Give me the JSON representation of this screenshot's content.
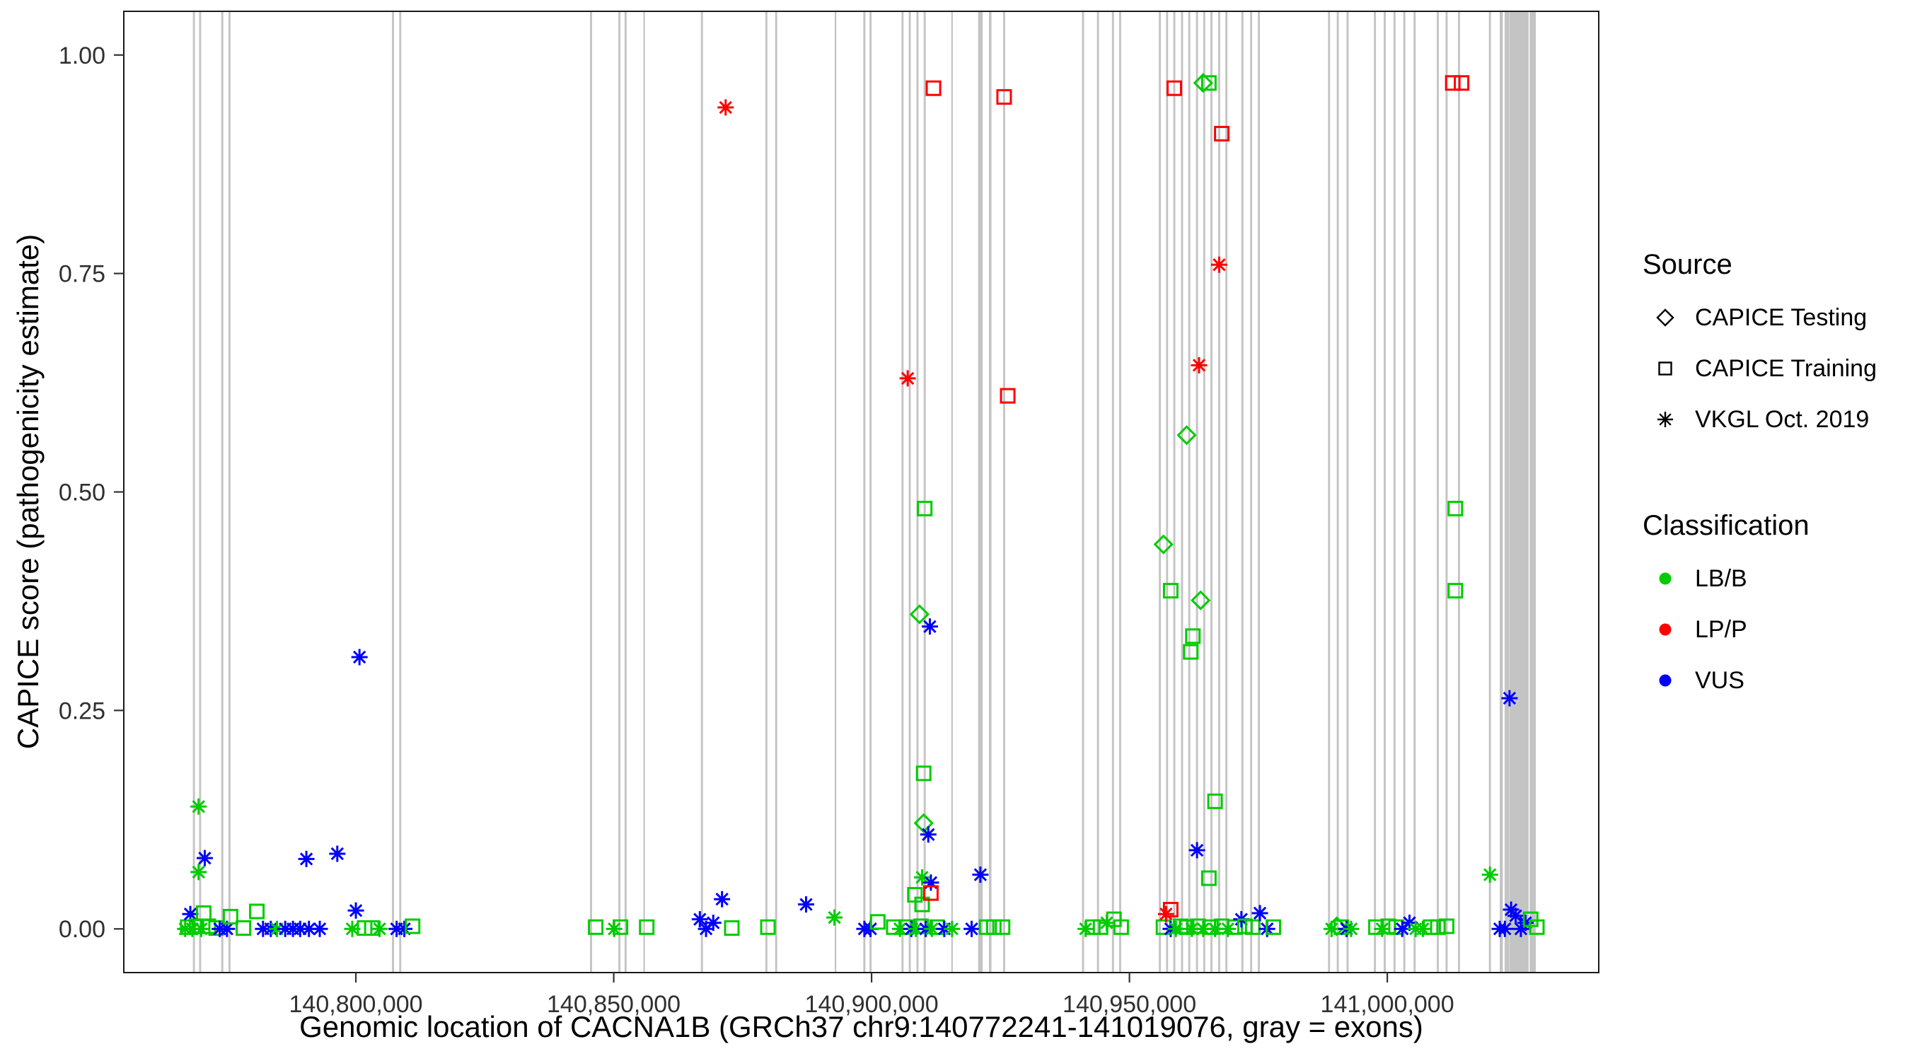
{
  "figure": {
    "background": "#FFFFFF",
    "panel_border_color": "#1a1a1a",
    "tick_color": "#333333",
    "tick_label_color": "#303030"
  },
  "chart_data": {
    "type": "scatter",
    "title": "",
    "xlabel": "Genomic location of CACNA1B (GRCh37 chr9:140772241-141019076, gray = exons)",
    "ylabel": "CAPICE score (pathogenicity estimate)",
    "xlim": [
      140755000,
      141041000
    ],
    "ylim": [
      -0.05,
      1.05
    ],
    "grid": "off",
    "exon_color": "#C4C4C4",
    "x_ticks": [
      {
        "value": 140800000,
        "label": "140,800,000"
      },
      {
        "value": 140850000,
        "label": "140,850,000"
      },
      {
        "value": 140900000,
        "label": "140,900,000"
      },
      {
        "value": 140950000,
        "label": "140,950,000"
      },
      {
        "value": 141000000,
        "label": "141,000,000"
      }
    ],
    "y_ticks": [
      {
        "value": 0.0,
        "label": "0.00"
      },
      {
        "value": 0.25,
        "label": "0.25"
      },
      {
        "value": 0.5,
        "label": "0.50"
      },
      {
        "value": 0.75,
        "label": "0.75"
      },
      {
        "value": 1.0,
        "label": "1.00"
      }
    ],
    "legend": {
      "position": "right",
      "source": {
        "title": "Source",
        "items": [
          {
            "label": "CAPICE Testing",
            "shape": "diamond"
          },
          {
            "label": "CAPICE Training",
            "shape": "square"
          },
          {
            "label": "VKGL Oct. 2019",
            "shape": "asterisk"
          }
        ]
      },
      "classification": {
        "title": "Classification",
        "items": [
          {
            "label": "LB/B",
            "color": "#00CC00"
          },
          {
            "label": "LP/P",
            "color": "#FF0000"
          },
          {
            "label": "VUS",
            "color": "#0000FF"
          }
        ]
      }
    },
    "shape_map": {
      "T": "diamond",
      "R": "square",
      "V": "asterisk"
    },
    "source_names": {
      "T": "CAPICE Testing",
      "R": "CAPICE Training",
      "V": "VKGL Oct. 2019"
    },
    "class_colors": {
      "B": "#00CC00",
      "P": "#FF0000",
      "U": "#0000FF"
    },
    "class_names": {
      "B": "LB/B",
      "P": "LP/P",
      "U": "VUS"
    },
    "exons_format": [
      "genomic_center_bp",
      "width_bp"
    ],
    "exons": [
      [
        140768600,
        400
      ],
      [
        140769800,
        400
      ],
      [
        140774100,
        400
      ],
      [
        140775500,
        400
      ],
      [
        140807200,
        400
      ],
      [
        140808600,
        400
      ],
      [
        140845600,
        400
      ],
      [
        140851100,
        400
      ],
      [
        140852300,
        400
      ],
      [
        140855900,
        300
      ],
      [
        140867100,
        400
      ],
      [
        140879600,
        400
      ],
      [
        140881500,
        400
      ],
      [
        140893000,
        300
      ],
      [
        140898600,
        400
      ],
      [
        140899800,
        400
      ],
      [
        140906000,
        400
      ],
      [
        140907400,
        400
      ],
      [
        140908900,
        400
      ],
      [
        140910300,
        400
      ],
      [
        140915600,
        300
      ],
      [
        140921100,
        900
      ],
      [
        140923000,
        500
      ],
      [
        140925700,
        400
      ],
      [
        140941000,
        400
      ],
      [
        140943900,
        400
      ],
      [
        140946800,
        400
      ],
      [
        140948200,
        400
      ],
      [
        140955900,
        400
      ],
      [
        140957300,
        400
      ],
      [
        140958700,
        400
      ],
      [
        140960200,
        400
      ],
      [
        140961600,
        400
      ],
      [
        140963100,
        400
      ],
      [
        140964500,
        400
      ],
      [
        140965900,
        400
      ],
      [
        140967400,
        400
      ],
      [
        140968800,
        400
      ],
      [
        140971900,
        400
      ],
      [
        140973600,
        400
      ],
      [
        140975100,
        400
      ],
      [
        140988700,
        400
      ],
      [
        140990400,
        400
      ],
      [
        140992300,
        400
      ],
      [
        140997600,
        400
      ],
      [
        140999500,
        400
      ],
      [
        141001400,
        400
      ],
      [
        141003300,
        400
      ],
      [
        141005300,
        400
      ],
      [
        141009800,
        400
      ],
      [
        141011500,
        400
      ],
      [
        141013900,
        400
      ],
      [
        141019900,
        400
      ],
      [
        141022100,
        600
      ],
      [
        141023200,
        900
      ],
      [
        141024500,
        1600
      ],
      [
        141026300,
        2200
      ],
      [
        141028200,
        1200
      ]
    ],
    "points_format": [
      "genomic_position_bp",
      "capice_score",
      "source_code",
      "classification_code"
    ],
    "points": [
      [
        140766900,
        0,
        "V",
        "B"
      ],
      [
        140767400,
        0.002,
        "R",
        "B"
      ],
      [
        140767900,
        0.017,
        "V",
        "U"
      ],
      [
        140768300,
        0,
        "V",
        "B"
      ],
      [
        140769100,
        0.003,
        "R",
        "B"
      ],
      [
        140769500,
        0.14,
        "V",
        "B"
      ],
      [
        140769500,
        0.065,
        "V",
        "B"
      ],
      [
        140770000,
        0,
        "V",
        "B"
      ],
      [
        140770500,
        0.018,
        "R",
        "B"
      ],
      [
        140770700,
        0.081,
        "V",
        "U"
      ],
      [
        140771400,
        0.003,
        "R",
        "B"
      ],
      [
        140772900,
        0.001,
        "R",
        "B"
      ],
      [
        140773600,
        0,
        "V",
        "U"
      ],
      [
        140775000,
        0,
        "V",
        "U"
      ],
      [
        140775700,
        0.014,
        "R",
        "B"
      ],
      [
        140778200,
        0.001,
        "R",
        "B"
      ],
      [
        140780800,
        0.02,
        "R",
        "B"
      ],
      [
        140782000,
        0,
        "V",
        "U"
      ],
      [
        140783500,
        0,
        "V",
        "U"
      ],
      [
        140784700,
        0,
        "V",
        "B"
      ],
      [
        140786300,
        0,
        "V",
        "U"
      ],
      [
        140787800,
        0,
        "V",
        "U"
      ],
      [
        140789200,
        0,
        "V",
        "U"
      ],
      [
        140790400,
        0.08,
        "V",
        "U"
      ],
      [
        140790900,
        0,
        "V",
        "U"
      ],
      [
        140793000,
        0,
        "V",
        "U"
      ],
      [
        140796400,
        0.086,
        "V",
        "U"
      ],
      [
        140799300,
        0,
        "V",
        "B"
      ],
      [
        140800000,
        0.021,
        "V",
        "U"
      ],
      [
        140800700,
        0.311,
        "V",
        "U"
      ],
      [
        140801700,
        0.001,
        "R",
        "B"
      ],
      [
        140803100,
        0.001,
        "R",
        "B"
      ],
      [
        140804600,
        0,
        "V",
        "B"
      ],
      [
        140807900,
        0,
        "V",
        "U"
      ],
      [
        140809400,
        0,
        "V",
        "U"
      ],
      [
        140811000,
        0.003,
        "R",
        "B"
      ],
      [
        140846500,
        0.002,
        "R",
        "B"
      ],
      [
        140850100,
        0,
        "V",
        "B"
      ],
      [
        140851300,
        0.002,
        "R",
        "B"
      ],
      [
        140856400,
        0.002,
        "R",
        "B"
      ],
      [
        140866700,
        0.011,
        "V",
        "U"
      ],
      [
        140867900,
        0,
        "V",
        "U"
      ],
      [
        140869300,
        0.007,
        "V",
        "U"
      ],
      [
        140871000,
        0.034,
        "V",
        "U"
      ],
      [
        140871700,
        0.94,
        "V",
        "P"
      ],
      [
        140872900,
        0.001,
        "R",
        "B"
      ],
      [
        140879900,
        0.002,
        "R",
        "B"
      ],
      [
        140887300,
        0.028,
        "V",
        "U"
      ],
      [
        140892800,
        0.013,
        "V",
        "B"
      ],
      [
        140898600,
        0,
        "V",
        "U"
      ],
      [
        140899800,
        0,
        "V",
        "U"
      ],
      [
        140901200,
        0.008,
        "R",
        "B"
      ],
      [
        140904300,
        0.002,
        "R",
        "B"
      ],
      [
        140905500,
        0,
        "V",
        "B"
      ],
      [
        140906700,
        0.002,
        "R",
        "B"
      ],
      [
        140907000,
        0.63,
        "V",
        "P"
      ],
      [
        140907700,
        0,
        "V",
        "U"
      ],
      [
        140908400,
        0.039,
        "R",
        "B"
      ],
      [
        140908600,
        0,
        "V",
        "B"
      ],
      [
        140909300,
        0.36,
        "T",
        "B"
      ],
      [
        140909600,
        0.003,
        "R",
        "B"
      ],
      [
        140909800,
        0.059,
        "V",
        "B"
      ],
      [
        140909800,
        0.028,
        "R",
        "B"
      ],
      [
        140910100,
        0.178,
        "R",
        "B"
      ],
      [
        140910100,
        0.121,
        "T",
        "B"
      ],
      [
        140910300,
        0.481,
        "R",
        "B"
      ],
      [
        140910500,
        0,
        "V",
        "U"
      ],
      [
        140911000,
        0.108,
        "V",
        "U"
      ],
      [
        140911300,
        0.346,
        "V",
        "U"
      ],
      [
        140911500,
        0.053,
        "V",
        "U"
      ],
      [
        140911500,
        0.041,
        "R",
        "P"
      ],
      [
        140911700,
        0,
        "V",
        "B"
      ],
      [
        140912000,
        0.962,
        "R",
        "P"
      ],
      [
        140912700,
        0.002,
        "R",
        "B"
      ],
      [
        140914100,
        0,
        "V",
        "U"
      ],
      [
        140915600,
        0,
        "V",
        "B"
      ],
      [
        140919400,
        0,
        "V",
        "U"
      ],
      [
        140921100,
        0.062,
        "V",
        "U"
      ],
      [
        140922300,
        0.002,
        "R",
        "B"
      ],
      [
        140923700,
        0.002,
        "R",
        "B"
      ],
      [
        140925400,
        0.002,
        "R",
        "B"
      ],
      [
        140925700,
        0.952,
        "R",
        "P"
      ],
      [
        140926400,
        0.61,
        "R",
        "P"
      ],
      [
        140941500,
        0,
        "V",
        "B"
      ],
      [
        140942900,
        0.002,
        "R",
        "B"
      ],
      [
        140944400,
        0.002,
        "R",
        "B"
      ],
      [
        140945600,
        0.007,
        "V",
        "B"
      ],
      [
        140947000,
        0.011,
        "R",
        "B"
      ],
      [
        140948400,
        0.002,
        "R",
        "B"
      ],
      [
        140956600,
        0.44,
        "T",
        "B"
      ],
      [
        140956600,
        0.002,
        "R",
        "B"
      ],
      [
        140957100,
        0.017,
        "V",
        "P"
      ],
      [
        140958000,
        0.387,
        "R",
        "B"
      ],
      [
        140958000,
        0.022,
        "R",
        "P"
      ],
      [
        140958000,
        0,
        "V",
        "U"
      ],
      [
        140958700,
        0.962,
        "R",
        "P"
      ],
      [
        140959000,
        0,
        "V",
        "B"
      ],
      [
        140959900,
        0.003,
        "R",
        "B"
      ],
      [
        140961100,
        0.565,
        "T",
        "B"
      ],
      [
        140961100,
        0.002,
        "R",
        "B"
      ],
      [
        140961900,
        0.317,
        "R",
        "B"
      ],
      [
        140962100,
        0,
        "V",
        "B"
      ],
      [
        140962300,
        0.335,
        "R",
        "B"
      ],
      [
        140963100,
        0.09,
        "V",
        "U"
      ],
      [
        140963300,
        0.003,
        "R",
        "B"
      ],
      [
        140963500,
        0.645,
        "V",
        "P"
      ],
      [
        140963800,
        0.376,
        "T",
        "B"
      ],
      [
        140964300,
        0.968,
        "T",
        "B"
      ],
      [
        140964300,
        0,
        "V",
        "B"
      ],
      [
        140965400,
        0.968,
        "R",
        "B"
      ],
      [
        140965400,
        0.058,
        "R",
        "B"
      ],
      [
        140965800,
        0.002,
        "R",
        "B"
      ],
      [
        140966600,
        0.146,
        "R",
        "B"
      ],
      [
        140966600,
        0,
        "V",
        "B"
      ],
      [
        140967400,
        0.76,
        "V",
        "P"
      ],
      [
        140967900,
        0.91,
        "R",
        "P"
      ],
      [
        140967900,
        0.003,
        "R",
        "B"
      ],
      [
        140969100,
        0,
        "V",
        "B"
      ],
      [
        140970500,
        0.002,
        "R",
        "B"
      ],
      [
        140971700,
        0.011,
        "V",
        "U"
      ],
      [
        140972400,
        0.003,
        "R",
        "B"
      ],
      [
        140973900,
        0.002,
        "R",
        "B"
      ],
      [
        140975300,
        0.018,
        "V",
        "U"
      ],
      [
        140976700,
        0,
        "V",
        "U"
      ],
      [
        140977900,
        0.002,
        "R",
        "B"
      ],
      [
        140989200,
        0,
        "V",
        "B"
      ],
      [
        140990200,
        0.003,
        "T",
        "B"
      ],
      [
        140991100,
        0.002,
        "R",
        "B"
      ],
      [
        140992100,
        0,
        "V",
        "U"
      ],
      [
        140993000,
        0,
        "V",
        "B"
      ],
      [
        140997800,
        0.002,
        "R",
        "B"
      ],
      [
        140999000,
        0,
        "V",
        "B"
      ],
      [
        141000200,
        0.003,
        "R",
        "B"
      ],
      [
        141001700,
        0.002,
        "R",
        "B"
      ],
      [
        141002900,
        0,
        "V",
        "U"
      ],
      [
        141004300,
        0.007,
        "V",
        "U"
      ],
      [
        141005500,
        0,
        "V",
        "B"
      ],
      [
        141006900,
        0,
        "V",
        "B"
      ],
      [
        141008400,
        0.002,
        "R",
        "B"
      ],
      [
        141009800,
        0.002,
        "R",
        "B"
      ],
      [
        141011500,
        0.003,
        "R",
        "B"
      ],
      [
        141012700,
        0.968,
        "R",
        "P"
      ],
      [
        141014400,
        0.968,
        "R",
        "P"
      ],
      [
        141013200,
        0.481,
        "R",
        "B"
      ],
      [
        141013200,
        0.387,
        "R",
        "B"
      ],
      [
        141019900,
        0.062,
        "V",
        "B"
      ],
      [
        141021800,
        0,
        "V",
        "U"
      ],
      [
        141022800,
        0,
        "V",
        "U"
      ],
      [
        141023700,
        0.264,
        "V",
        "U"
      ],
      [
        141024000,
        0.022,
        "V",
        "U"
      ],
      [
        141024900,
        0.015,
        "V",
        "U"
      ],
      [
        141025900,
        0,
        "V",
        "U"
      ],
      [
        141026800,
        0.007,
        "V",
        "U"
      ],
      [
        141027800,
        0.011,
        "R",
        "B"
      ],
      [
        141029000,
        0.002,
        "R",
        "B"
      ]
    ]
  }
}
